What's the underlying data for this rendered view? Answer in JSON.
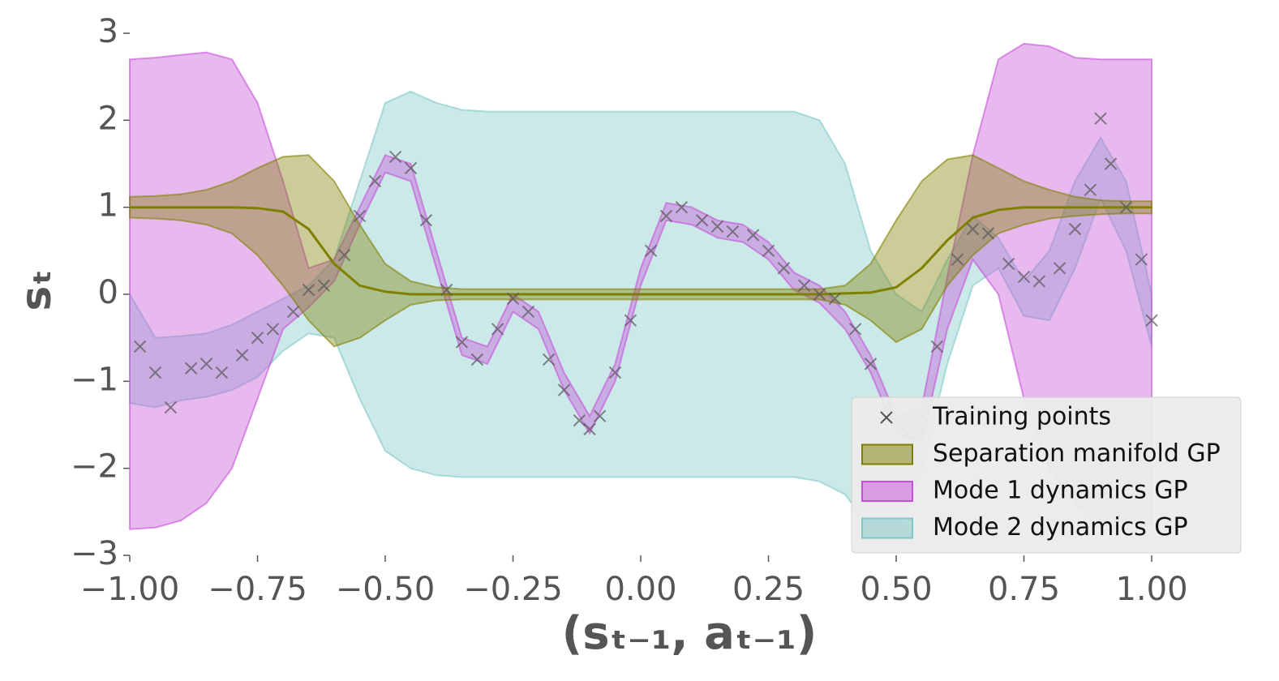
{
  "chart_data": {
    "type": "line",
    "x_label": "(sₜ₋₁, aₜ₋₁)",
    "y_label": "sₜ",
    "xlim": [
      -1,
      1
    ],
    "ylim": [
      -3,
      3
    ],
    "xticks": [
      {
        "value": -1,
        "label": "−1.00"
      },
      {
        "value": -0.75,
        "label": "−0.75"
      },
      {
        "value": -0.5,
        "label": "−0.50"
      },
      {
        "value": -0.25,
        "label": "−0.25"
      },
      {
        "value": 0,
        "label": "0.00"
      },
      {
        "value": 0.25,
        "label": "0.25"
      },
      {
        "value": 0.5,
        "label": "0.50"
      },
      {
        "value": 0.75,
        "label": "0.75"
      },
      {
        "value": 1,
        "label": "1.00"
      }
    ],
    "yticks": [
      {
        "value": -3,
        "label": "−3"
      },
      {
        "value": -2,
        "label": "−2"
      },
      {
        "value": -1,
        "label": "−1"
      },
      0,
      1,
      2,
      3
    ],
    "legend": "lower right",
    "x": [
      -1,
      -0.95,
      -0.9,
      -0.85,
      -0.8,
      -0.75,
      -0.7,
      -0.65,
      -0.6,
      -0.55,
      -0.5,
      -0.45,
      -0.4,
      -0.35,
      -0.3,
      -0.25,
      -0.2,
      -0.15,
      -0.1,
      -0.05,
      0,
      0.05,
      0.1,
      0.15,
      0.2,
      0.25,
      0.3,
      0.35,
      0.4,
      0.45,
      0.5,
      0.55,
      0.6,
      0.65,
      0.7,
      0.75,
      0.8,
      0.85,
      0.9,
      0.95,
      1
    ],
    "series": [
      {
        "name": "Training points",
        "color": "#555555",
        "marker": "x",
        "x": [
          -0.98,
          -0.95,
          -0.92,
          -0.88,
          -0.85,
          -0.82,
          -0.78,
          -0.75,
          -0.72,
          -0.68,
          -0.65,
          -0.62,
          -0.58,
          -0.55,
          -0.52,
          -0.48,
          -0.45,
          -0.42,
          -0.38,
          -0.35,
          -0.32,
          -0.28,
          -0.25,
          -0.22,
          -0.18,
          -0.15,
          -0.12,
          -0.1,
          -0.08,
          -0.05,
          -0.02,
          0.02,
          0.05,
          0.08,
          0.12,
          0.15,
          0.18,
          0.22,
          0.25,
          0.28,
          0.32,
          0.35,
          0.38,
          0.42,
          0.45,
          0.48,
          0.52,
          0.55,
          0.58,
          0.62,
          0.65,
          0.68,
          0.72,
          0.75,
          0.78,
          0.82,
          0.85,
          0.88,
          0.9,
          0.92,
          0.95,
          0.98,
          1.0
        ],
        "values": [
          -0.6,
          -0.9,
          -1.3,
          -0.85,
          -0.8,
          -0.9,
          -0.7,
          -0.5,
          -0.4,
          -0.2,
          0.05,
          0.1,
          0.45,
          0.9,
          1.3,
          1.58,
          1.45,
          0.85,
          0.05,
          -0.55,
          -0.75,
          -0.4,
          -0.05,
          -0.2,
          -0.75,
          -1.1,
          -1.45,
          -1.55,
          -1.4,
          -0.9,
          -0.3,
          0.5,
          0.9,
          1.0,
          0.85,
          0.78,
          0.72,
          0.68,
          0.5,
          0.3,
          0.1,
          0.0,
          -0.05,
          -0.4,
          -0.8,
          -1.3,
          -1.6,
          -1.4,
          -0.6,
          0.4,
          0.75,
          0.7,
          0.35,
          0.2,
          0.15,
          0.3,
          0.75,
          1.2,
          2.02,
          1.5,
          1.0,
          0.4,
          -0.3
        ]
      },
      {
        "name": "Separation manifold GP",
        "color": "#808000",
        "values": [
          1,
          1,
          1,
          1,
          1,
          0.99,
          0.95,
          0.75,
          0.35,
          0.1,
          0.03,
          0,
          0,
          0,
          0,
          0,
          0,
          0,
          0,
          0,
          0,
          0,
          0,
          0,
          0,
          0,
          0,
          0,
          0.01,
          0.02,
          0.08,
          0.3,
          0.62,
          0.88,
          0.97,
          1,
          1,
          1,
          1,
          1,
          1
        ],
        "upper": [
          1.12,
          1.13,
          1.15,
          1.2,
          1.3,
          1.45,
          1.58,
          1.6,
          1.3,
          0.8,
          0.35,
          0.15,
          0.08,
          0.06,
          0.06,
          0.06,
          0.06,
          0.06,
          0.06,
          0.06,
          0.06,
          0.06,
          0.06,
          0.06,
          0.06,
          0.06,
          0.06,
          0.06,
          0.1,
          0.35,
          0.85,
          1.3,
          1.55,
          1.6,
          1.45,
          1.3,
          1.2,
          1.12,
          1.08,
          1.07,
          1.07
        ],
        "lower": [
          0.88,
          0.87,
          0.85,
          0.8,
          0.7,
          0.45,
          0.1,
          -0.3,
          -0.6,
          -0.5,
          -0.3,
          -0.12,
          -0.07,
          -0.06,
          -0.06,
          -0.06,
          -0.06,
          -0.06,
          -0.06,
          -0.06,
          -0.06,
          -0.06,
          -0.06,
          -0.06,
          -0.06,
          -0.06,
          -0.06,
          -0.06,
          -0.12,
          -0.3,
          -0.55,
          -0.4,
          0.1,
          0.45,
          0.7,
          0.8,
          0.87,
          0.9,
          0.92,
          0.93,
          0.93
        ]
      },
      {
        "name": "Mode 1 dynamics GP",
        "color": "#c64fd8",
        "upper": [
          2.7,
          2.72,
          2.75,
          2.78,
          2.7,
          2.2,
          1.3,
          0.3,
          0.4,
          1.0,
          1.6,
          1.5,
          0.5,
          -0.5,
          -0.6,
          0.0,
          -0.2,
          -0.9,
          -1.4,
          -0.8,
          0.3,
          1.05,
          1.0,
          0.85,
          0.8,
          0.6,
          0.25,
          0.1,
          -0.2,
          -0.7,
          -1.4,
          -1.3,
          0.2,
          1.6,
          2.7,
          2.88,
          2.85,
          2.72,
          2.7,
          2.7,
          2.7
        ],
        "lower": [
          -2.7,
          -2.68,
          -2.6,
          -2.4,
          -2.0,
          -1.2,
          -0.4,
          -0.15,
          0.15,
          0.8,
          1.4,
          1.3,
          0.3,
          -0.7,
          -0.8,
          -0.2,
          -0.4,
          -1.1,
          -1.6,
          -1.0,
          0.1,
          0.85,
          0.8,
          0.65,
          0.6,
          0.4,
          0.05,
          -0.1,
          -0.4,
          -0.9,
          -1.6,
          -1.7,
          -0.4,
          0.4,
          0.0,
          -1.2,
          -2.0,
          -2.4,
          -2.6,
          -2.62,
          -2.65
        ]
      },
      {
        "name": "Mode 2 dynamics GP",
        "color": "#7fc8c8",
        "upper": [
          0.0,
          -0.5,
          -0.48,
          -0.45,
          -0.35,
          -0.2,
          -0.05,
          0.1,
          0.4,
          1.3,
          2.2,
          2.33,
          2.2,
          2.12,
          2.1,
          2.1,
          2.1,
          2.1,
          2.1,
          2.1,
          2.1,
          2.1,
          2.1,
          2.1,
          2.1,
          2.1,
          2.1,
          2.0,
          1.5,
          0.5,
          0.0,
          -0.2,
          0.4,
          0.9,
          0.65,
          0.15,
          0.5,
          1.3,
          1.8,
          1.3,
          0.0
        ],
        "lower": [
          -1.25,
          -1.3,
          -1.22,
          -1.18,
          -1.1,
          -0.95,
          -0.65,
          -0.45,
          -0.5,
          -1.2,
          -1.8,
          -2.0,
          -2.08,
          -2.1,
          -2.1,
          -2.1,
          -2.1,
          -2.1,
          -2.1,
          -2.1,
          -2.1,
          -2.1,
          -2.1,
          -2.1,
          -2.1,
          -2.1,
          -2.1,
          -2.15,
          -2.3,
          -2.7,
          -2.8,
          -2.0,
          -0.8,
          0.1,
          0.3,
          -0.25,
          -0.3,
          0.3,
          1.1,
          0.5,
          -0.6
        ]
      }
    ]
  }
}
